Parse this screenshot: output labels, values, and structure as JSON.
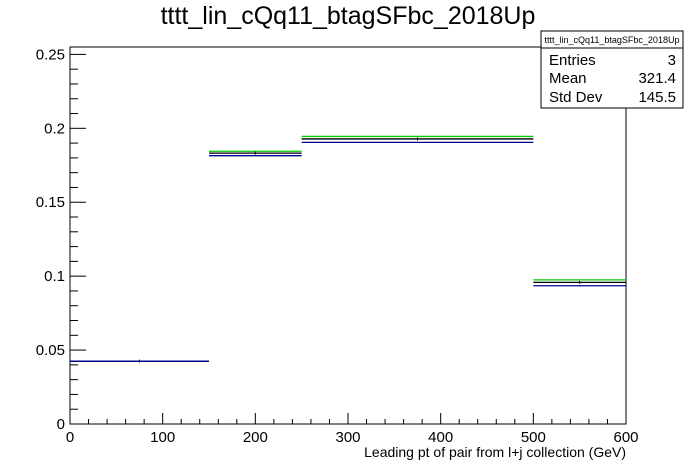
{
  "chart_data": {
    "type": "histogram",
    "title": "tttt_lin_cQq11_btagSFbc_2018Up",
    "xlabel": "Leading pt of pair from l+j collection (GeV)",
    "ylabel": "",
    "xlim": [
      0,
      600
    ],
    "ylim": [
      0,
      0.255
    ],
    "x_ticks": [
      0,
      100,
      200,
      300,
      400,
      500,
      600
    ],
    "x_tick_labels": [
      "0",
      "100",
      "200",
      "300",
      "400",
      "500",
      "600"
    ],
    "y_ticks": [
      0,
      0.05,
      0.1,
      0.15,
      0.2,
      0.25
    ],
    "y_tick_labels": [
      "0",
      "0.05",
      "0.1",
      "0.15",
      "0.2",
      "0.25"
    ],
    "grid": false,
    "bins": [
      {
        "low": 0,
        "high": 150
      },
      {
        "low": 150,
        "high": 250
      },
      {
        "low": 250,
        "high": 500
      },
      {
        "low": 500,
        "high": 600
      }
    ],
    "series": [
      {
        "color": "#00cc00",
        "values": [
          0.0425,
          0.1845,
          0.1945,
          0.0975
        ]
      },
      {
        "color": "#000000",
        "values": [
          0.0425,
          0.1832,
          0.1928,
          0.0958
        ]
      },
      {
        "color": "#000099",
        "values": [
          0.0425,
          0.1815,
          0.1905,
          0.0935
        ]
      }
    ],
    "stats_box": {
      "title": "tttt_lin_cQq11_btagSFbc_2018Up",
      "rows": [
        {
          "label": "Entries",
          "value": "3"
        },
        {
          "label": "Mean",
          "value": "321.4"
        },
        {
          "label": "Std Dev",
          "value": "145.5"
        }
      ],
      "placement": "top-right"
    }
  }
}
